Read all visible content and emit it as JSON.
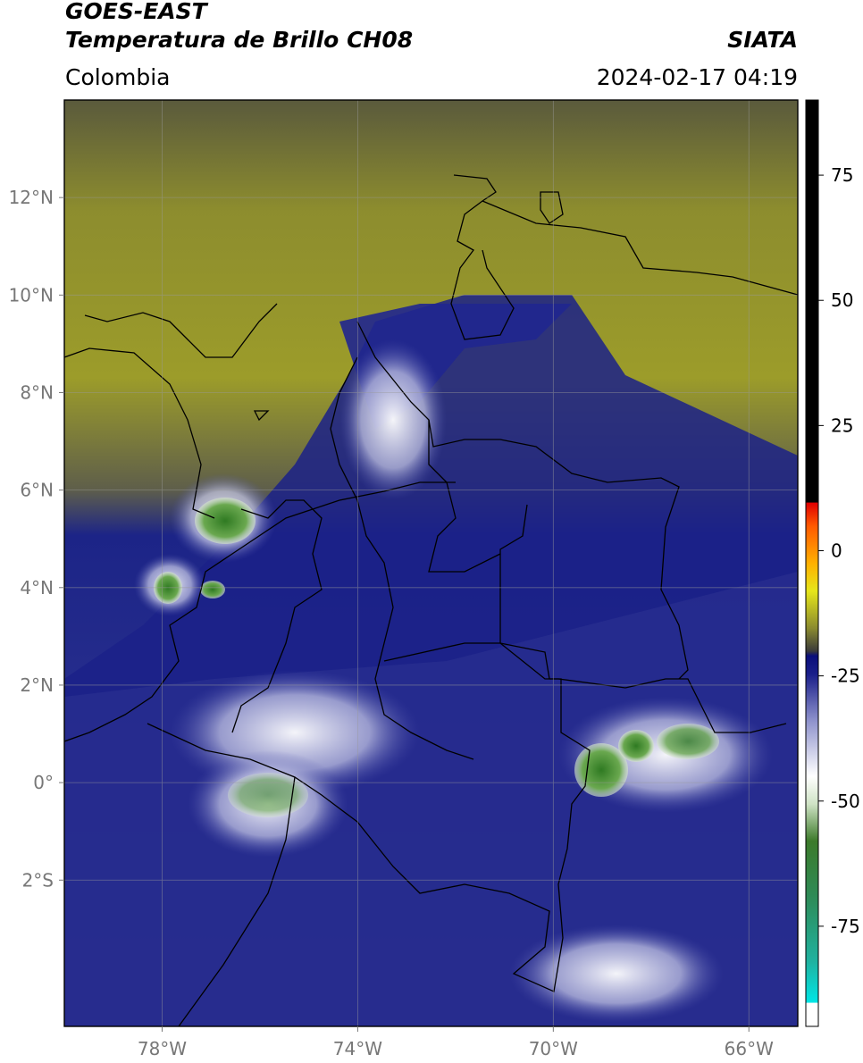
{
  "header": {
    "satellite": "GOES-EAST",
    "product": "Temperatura de Brillo CH08",
    "region": "Colombia",
    "agency": "SIATA",
    "timestamp": "2024-02-17 04:19"
  },
  "map": {
    "extent": {
      "lon": [
        -80,
        -65
      ],
      "lat": [
        -5,
        14
      ]
    },
    "lat_ticks": [
      {
        "value": 12,
        "label": "12°N"
      },
      {
        "value": 10,
        "label": "10°N"
      },
      {
        "value": 8,
        "label": "8°N"
      },
      {
        "value": 6,
        "label": "6°N"
      },
      {
        "value": 4,
        "label": "4°N"
      },
      {
        "value": 2,
        "label": "2°N"
      },
      {
        "value": 0,
        "label": "0°"
      },
      {
        "value": -2,
        "label": "2°S"
      }
    ],
    "lon_ticks": [
      {
        "value": -78,
        "label": "78°W"
      },
      {
        "value": -74,
        "label": "74°W"
      },
      {
        "value": -70,
        "label": "70°W"
      },
      {
        "value": -66,
        "label": "66°W"
      }
    ],
    "grid": true,
    "colors": {
      "warm_band": "#8f8f2c",
      "mid_band": "#2a2f9a",
      "deep_blue": "#0b0f7e",
      "cold_white": "#f2f2f2",
      "cold_green": "#3f8a2c",
      "border": "#000000"
    }
  },
  "colorbar": {
    "range": [
      -95,
      90
    ],
    "ticks": [
      {
        "value": 75,
        "label": "75"
      },
      {
        "value": 50,
        "label": "50"
      },
      {
        "value": 25,
        "label": "25"
      },
      {
        "value": 0,
        "label": "0"
      },
      {
        "value": -25,
        "label": "-25"
      },
      {
        "value": -50,
        "label": "-50"
      },
      {
        "value": -75,
        "label": "-75"
      }
    ]
  }
}
